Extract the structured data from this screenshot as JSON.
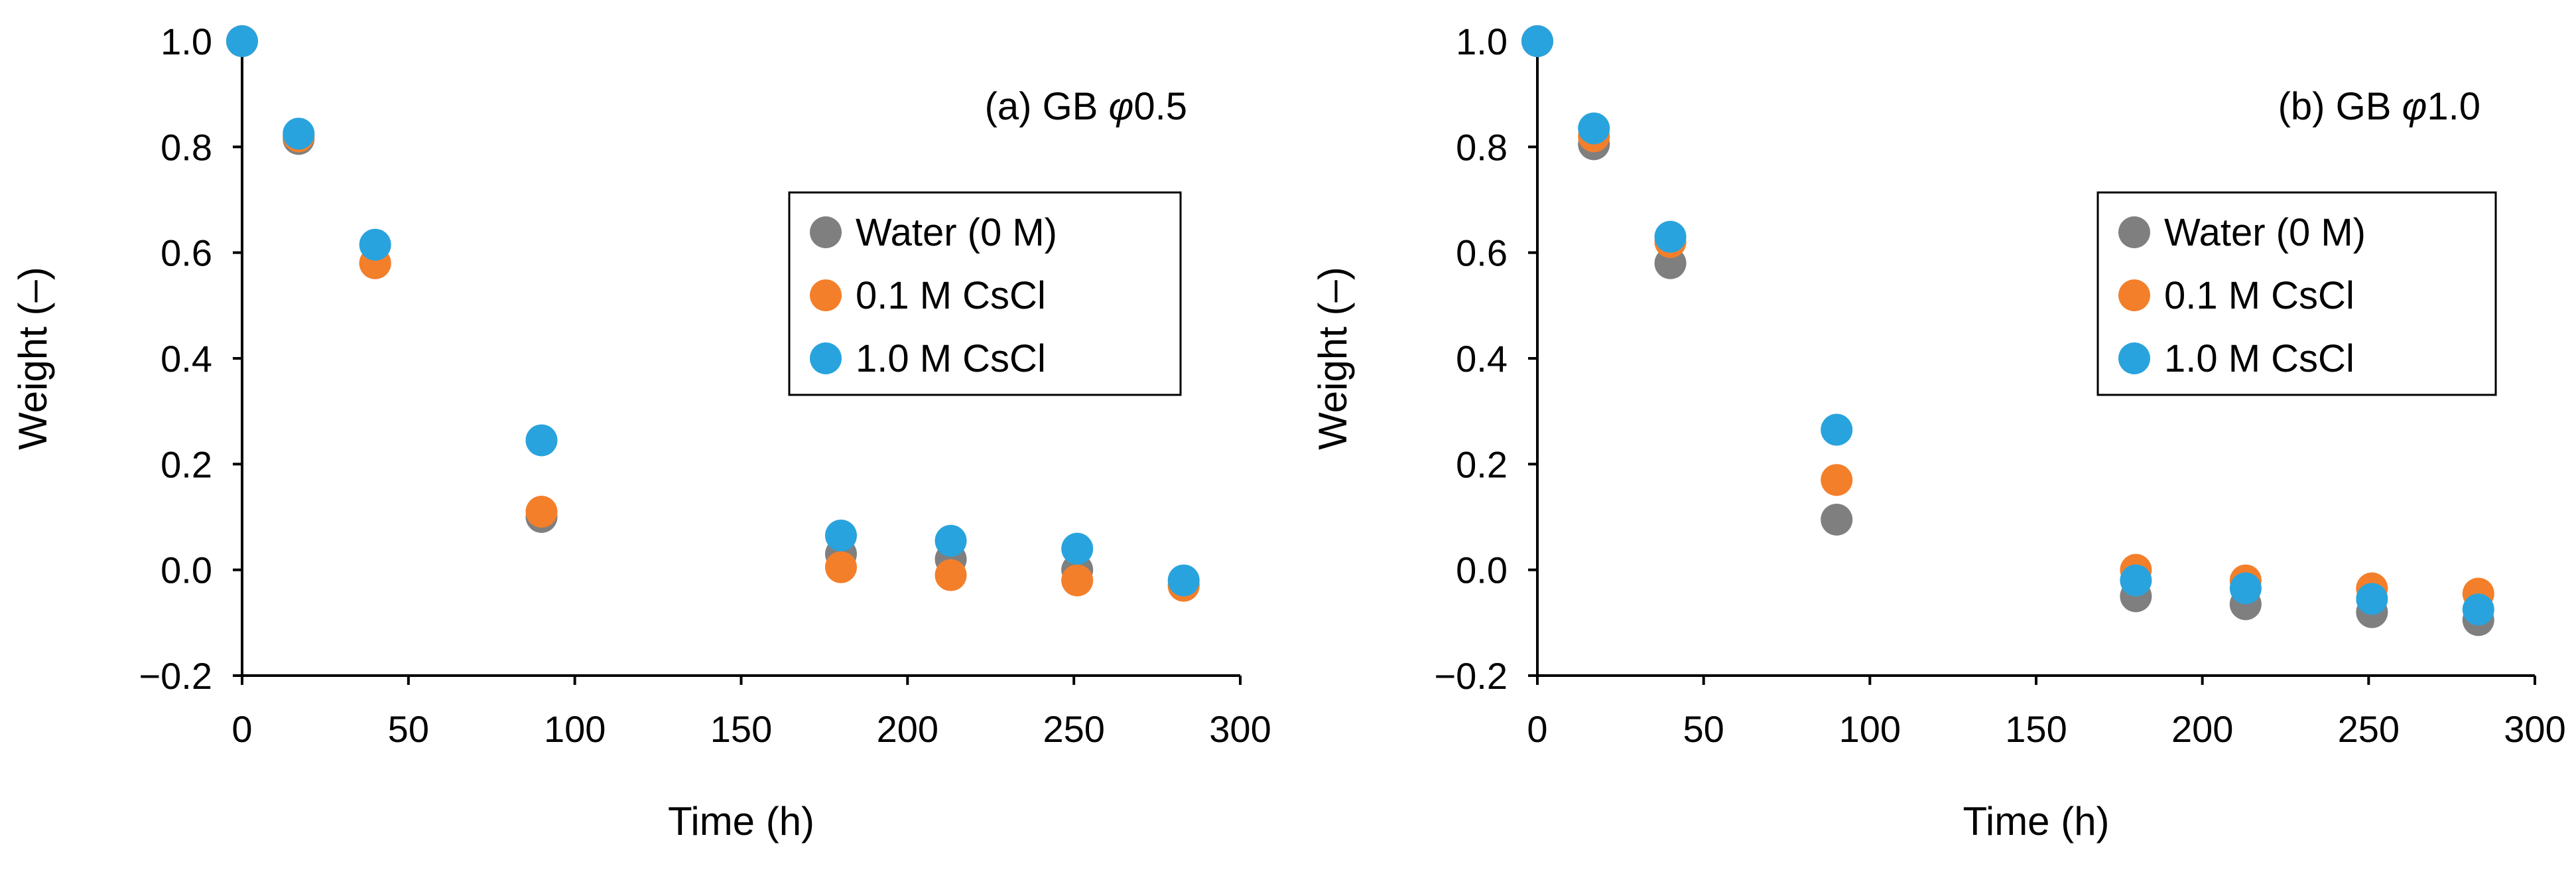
{
  "chart_data": [
    {
      "type": "scatter",
      "title": "(a) GB φ0.5",
      "title_prefix": "(a) GB ",
      "title_symbol": "φ",
      "title_suffix": "0.5",
      "xlabel": "Time (h)",
      "ylabel": "Weight (–)",
      "xlim": [
        0,
        300
      ],
      "ylim": [
        -0.2,
        1.0
      ],
      "xticks": [
        "0",
        "50",
        "100",
        "150",
        "200",
        "250",
        "300"
      ],
      "yticks": [
        "1.0",
        "0.8",
        "0.6",
        "0.4",
        "0.2",
        "0.0",
        "−0.2"
      ],
      "grid": false,
      "legend_position": "right",
      "series": [
        {
          "name": "Water (0 M)",
          "color": "#7f7f7f",
          "x": [
            0,
            17,
            40,
            90,
            180,
            213,
            251,
            283
          ],
          "y": [
            1.0,
            0.815,
            0.58,
            0.1,
            0.03,
            0.02,
            0.0,
            -0.03
          ]
        },
        {
          "name": "0.1 M CsCl",
          "color": "#f47f2a",
          "x": [
            0,
            17,
            40,
            90,
            180,
            213,
            251,
            283
          ],
          "y": [
            1.0,
            0.82,
            0.58,
            0.11,
            0.005,
            -0.01,
            -0.02,
            -0.03
          ]
        },
        {
          "name": "1.0 M CsCl",
          "color": "#29a3dd",
          "x": [
            0,
            17,
            40,
            90,
            180,
            213,
            251,
            283
          ],
          "y": [
            1.0,
            0.825,
            0.615,
            0.245,
            0.065,
            0.055,
            0.04,
            -0.02
          ]
        }
      ]
    },
    {
      "type": "scatter",
      "title": "(b) GB φ1.0",
      "title_prefix": "(b) GB ",
      "title_symbol": "φ",
      "title_suffix": "1.0",
      "xlabel": "Time (h)",
      "ylabel": "Weight (–)",
      "xlim": [
        0,
        300
      ],
      "ylim": [
        -0.2,
        1.0
      ],
      "xticks": [
        "0",
        "50",
        "100",
        "150",
        "200",
        "250",
        "300"
      ],
      "yticks": [
        "1.0",
        "0.8",
        "0.6",
        "0.4",
        "0.2",
        "0.0",
        "−0.2"
      ],
      "grid": false,
      "legend_position": "right",
      "series": [
        {
          "name": "Water (0 M)",
          "color": "#7f7f7f",
          "x": [
            0,
            17,
            40,
            90,
            180,
            213,
            251,
            283
          ],
          "y": [
            1.0,
            0.805,
            0.58,
            0.095,
            -0.05,
            -0.065,
            -0.08,
            -0.095
          ]
        },
        {
          "name": "0.1 M CsCl",
          "color": "#f47f2a",
          "x": [
            0,
            17,
            40,
            90,
            180,
            213,
            251,
            283
          ],
          "y": [
            1.0,
            0.82,
            0.62,
            0.17,
            0.0,
            -0.02,
            -0.035,
            -0.045
          ]
        },
        {
          "name": "1.0 M CsCl",
          "color": "#29a3dd",
          "x": [
            0,
            17,
            40,
            90,
            180,
            213,
            251,
            283
          ],
          "y": [
            1.0,
            0.835,
            0.63,
            0.265,
            -0.02,
            -0.035,
            -0.055,
            -0.075
          ]
        }
      ]
    }
  ]
}
